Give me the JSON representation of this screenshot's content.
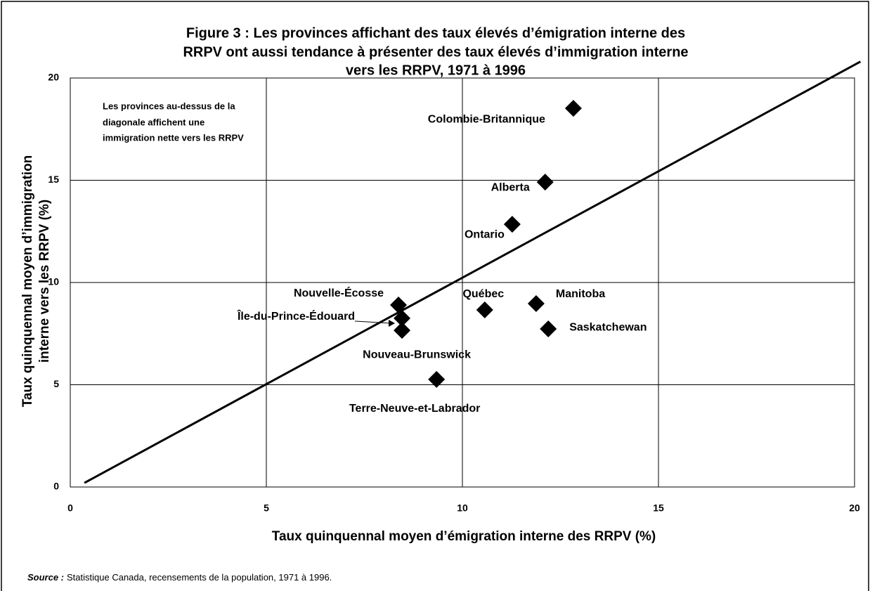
{
  "chart_data": {
    "type": "scatter",
    "title": [
      "Figure 3 : Les provinces affichant des taux élevés d’émigration interne des",
      "RRPV ont aussi tendance à présenter des taux élevés d’immigration interne",
      "vers les RRPV, 1971 à 1996"
    ],
    "x_label": "Taux quinquennal moyen d’émigration interne des RRPV (%)",
    "y_label": [
      "Taux quinquennal moyen d’immigration",
      "interne vers les RRPV (%)"
    ],
    "annotation": [
      "Les provinces au-dessus de la",
      "diagonale affichent une",
      "immigration nette vers les RRPV"
    ],
    "labels": [
      "Colombie-Britannique",
      "Alberta",
      "Ontario",
      "Nouvelle-Écosse",
      "Île-du-Prince-Édouard",
      "Nouveau-Brunswick",
      "Québec",
      "Manitoba",
      "Saskatchewan",
      "Terre-Neuve-et-Labrador"
    ],
    "x": [
      12.83,
      12.11,
      11.27,
      8.37,
      8.46,
      8.46,
      10.57,
      11.88,
      12.19,
      9.34
    ],
    "y": [
      18.52,
      14.91,
      12.85,
      8.9,
      8.25,
      7.66,
      8.66,
      8.97,
      7.73,
      5.26
    ],
    "color": "#000000",
    "reference_line": {
      "x": [
        0.36,
        20.15
      ],
      "y": [
        0.2,
        20.8
      ]
    },
    "xlim": [
      0,
      20
    ],
    "ylim": [
      0,
      20
    ],
    "xticks": [
      0,
      5,
      10,
      15,
      20
    ],
    "yticks": [
      0,
      5,
      10,
      15,
      20
    ],
    "grid": true,
    "source_label": "Source :",
    "source": "Statistique Canada, recensements de la population, 1971 à 1996."
  }
}
